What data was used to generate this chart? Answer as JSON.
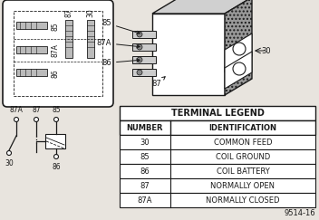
{
  "bg_color": "#e8e4de",
  "title": "TERMINAL LEGEND",
  "table_headers": [
    "NUMBER",
    "IDENTIFICATION"
  ],
  "table_rows": [
    [
      "30",
      "COMMON FEED"
    ],
    [
      "85",
      "COIL GROUND"
    ],
    [
      "86",
      "COIL BATTERY"
    ],
    [
      "87",
      "NORMALLY OPEN"
    ],
    [
      "87A",
      "NORMALLY CLOSED"
    ]
  ],
  "figure_number": "9514-16",
  "lc": "#1a1a1a"
}
